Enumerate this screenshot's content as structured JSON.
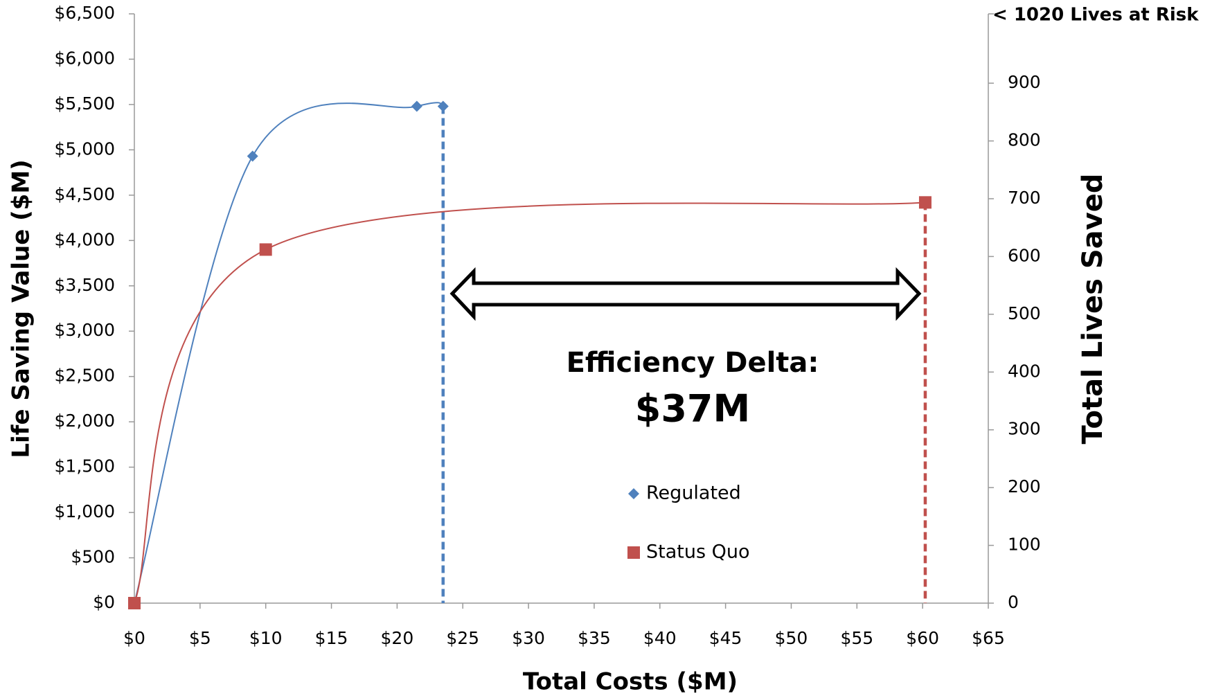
{
  "chart_data": {
    "type": "scatter",
    "smooth": true,
    "x_label": "Total Costs ($M)",
    "y_label": "Life Saving Value ($M)",
    "y2_label": "Total Lives Saved",
    "y2_top_label": "< 1020 Lives at Risk",
    "annotations": [
      "Efficiency Delta:",
      "$37M"
    ],
    "legend": "center",
    "xlim": [
      0,
      65
    ],
    "xticks": [
      {
        "value": 0,
        "label": "$0"
      },
      {
        "value": 5,
        "label": "$5"
      },
      {
        "value": 10,
        "label": "$10"
      },
      {
        "value": 15,
        "label": "$15"
      },
      {
        "value": 20,
        "label": "$20"
      },
      {
        "value": 25,
        "label": "$25"
      },
      {
        "value": 30,
        "label": "$30"
      },
      {
        "value": 35,
        "label": "$35"
      },
      {
        "value": 40,
        "label": "$40"
      },
      {
        "value": 45,
        "label": "$45"
      },
      {
        "value": 50,
        "label": "$50"
      },
      {
        "value": 55,
        "label": "$55"
      },
      {
        "value": 60,
        "label": "$60"
      },
      {
        "value": 65,
        "label": "$65"
      }
    ],
    "ylim": [
      0,
      6500
    ],
    "yticks": [
      {
        "value": 0,
        "label": "$0"
      },
      {
        "value": 500,
        "label": "$500"
      },
      {
        "value": 1000,
        "label": "$1,000"
      },
      {
        "value": 1500,
        "label": "$1,500"
      },
      {
        "value": 2000,
        "label": "$2,000"
      },
      {
        "value": 2500,
        "label": "$2,500"
      },
      {
        "value": 3000,
        "label": "$3,000"
      },
      {
        "value": 3500,
        "label": "$3,500"
      },
      {
        "value": 4000,
        "label": "$4,000"
      },
      {
        "value": 4500,
        "label": "$4,500"
      },
      {
        "value": 5000,
        "label": "$5,000"
      },
      {
        "value": 5500,
        "label": "$5,500"
      },
      {
        "value": 6000,
        "label": "$6,000"
      },
      {
        "value": 6500,
        "label": "$6,500"
      }
    ],
    "y2lim": [
      0,
      1020
    ],
    "y2ticks": [
      0,
      100,
      200,
      300,
      400,
      500,
      600,
      700,
      800,
      900
    ],
    "series": [
      {
        "name": "Regulated",
        "color": "#4f81bd",
        "marker": "diamond",
        "x": [
          0,
          9,
          21.5,
          23.5
        ],
        "values": [
          0,
          4930,
          5480,
          5480
        ]
      },
      {
        "name": "Status Quo",
        "color": "#c0504d",
        "marker": "square",
        "x": [
          0,
          10,
          60.2
        ],
        "values": [
          0,
          3900,
          4420
        ]
      }
    ]
  }
}
